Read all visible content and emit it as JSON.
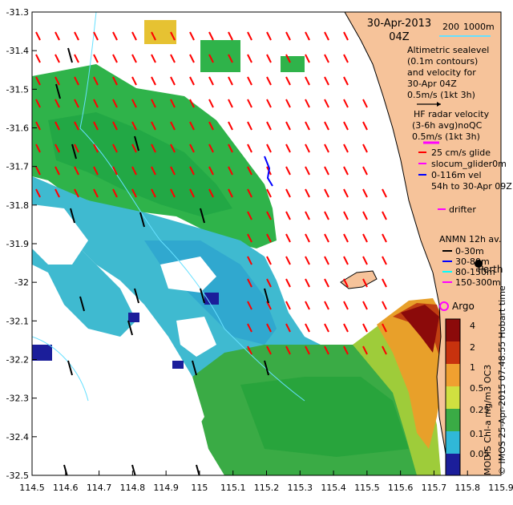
{
  "header": {
    "date": "30-Apr-2013",
    "time": "04Z",
    "scale_small": "200",
    "scale_large": "1000m"
  },
  "legend": {
    "altimetric": [
      "Altimetric sealevel",
      "(0.1m contours)",
      "and velocity for",
      "30-Apr 04Z",
      "0.5m/s (1kt 3h)"
    ],
    "hf_radar": [
      "HF radar velocity",
      "(3-6h avg)noQC",
      "0.5m/s (1kt 3h)"
    ],
    "glider": [
      "25 cm/s glide",
      "slocum_glider0m",
      "0-116m vel",
      "54h to 30-Apr 09Z"
    ],
    "drifter": "drifter",
    "anmn_title": "ANMN 12h av.",
    "anmn_items": [
      "0-30m",
      "30-80m",
      "80-150m",
      "150-300m"
    ],
    "place": "Perth",
    "argo": "Argo"
  },
  "axes": {
    "x_ticks": [
      "114.5",
      "114.6",
      "114.7",
      "114.8",
      "114.9",
      "115",
      "115.1",
      "115.2",
      "115.3",
      "115.4",
      "115.5",
      "115.6",
      "115.7",
      "115.8",
      "115.9"
    ],
    "y_ticks": [
      "-31.3",
      "-31.4",
      "-31.5",
      "-31.6",
      "-31.7",
      "-31.8",
      "-31.9",
      "-32",
      "-32.1",
      "-32.2",
      "-32.3",
      "-32.4",
      "-32.5"
    ]
  },
  "colorbar": {
    "labels": [
      "4",
      "2",
      "1",
      "0.5",
      "0.25",
      "0.1",
      "0.05"
    ],
    "title": "MODIS Chl-a mg/m3 OC3",
    "credit": "© IMOS 25-Apr-2015 07:48:55 Hobart time"
  },
  "colors": {
    "land": "#f6c39a",
    "coast": "#000000",
    "altimetry_arrow": "#ff0000",
    "anmn_arrow": "#000000",
    "glider_track": "#0000ff",
    "drifter": "#ff00ff",
    "contour": "#66e0ff"
  }
}
